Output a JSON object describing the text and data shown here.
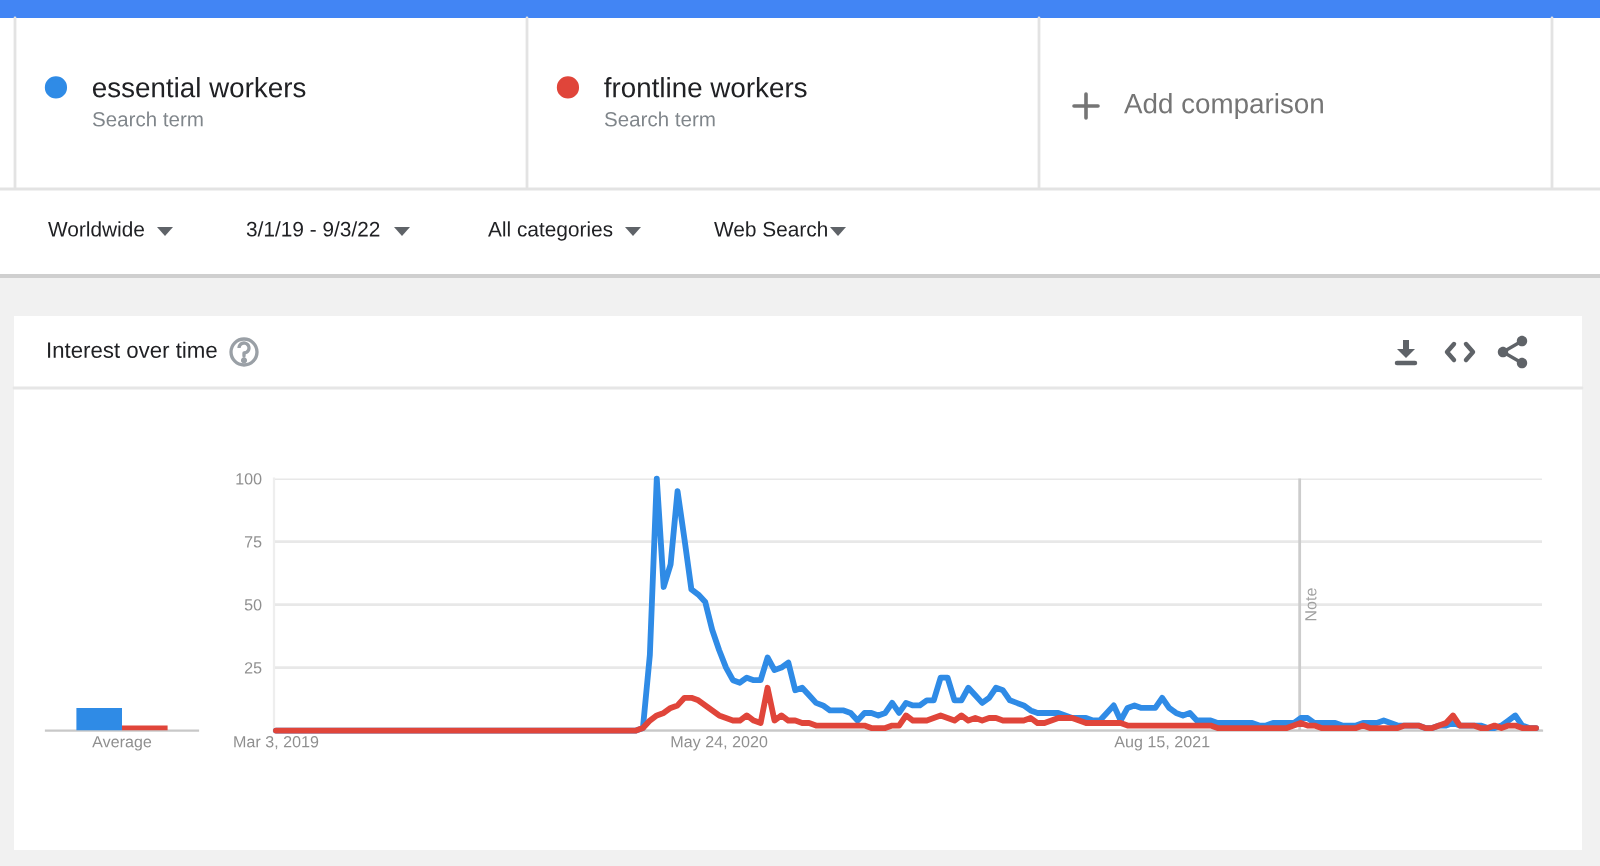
{
  "chart_data": [
    {
      "type": "bar",
      "title": "Interest over time",
      "categories": [
        "Average"
      ],
      "series": [
        {
          "color": "#2f8be6",
          "values": [
            9
          ]
        },
        {
          "color": "#e0453a",
          "values": [
            2
          ]
        }
      ],
      "ylim": [
        0,
        100
      ],
      "tick_labels": "x"
    },
    {
      "type": "line",
      "annotations": [
        "Search term",
        "Search term",
        "Add comparison",
        "Worldwide",
        "3/1/19 - 9/3/22",
        "All categories",
        "Web Search"
      ],
      "x": [
        "2019-03-03",
        "2020-03-01",
        "2020-03-08",
        "2020-03-15",
        "2020-03-22",
        "2020-03-29",
        "2020-04-05",
        "2020-04-12",
        "2020-04-19",
        "2020-04-26",
        "2020-05-03",
        "2020-05-10",
        "2020-05-17",
        "2020-05-24",
        "2020-05-31",
        "2020-06-07",
        "2020-06-14",
        "2020-06-21",
        "2020-06-28",
        "2020-07-05",
        "2020-07-12",
        "2020-07-19",
        "2020-07-26",
        "2020-08-02",
        "2020-08-09",
        "2020-08-16",
        "2020-08-23",
        "2020-08-30",
        "2020-09-06",
        "2020-09-13",
        "2020-09-20",
        "2020-09-27",
        "2020-10-04",
        "2020-10-11",
        "2020-10-18",
        "2020-10-25",
        "2020-11-01",
        "2020-11-08",
        "2020-11-15",
        "2020-11-22",
        "2020-11-29",
        "2020-12-06",
        "2020-12-13",
        "2020-12-20",
        "2020-12-27",
        "2021-01-03",
        "2021-01-10",
        "2021-01-17",
        "2021-01-24",
        "2021-01-31",
        "2021-02-07",
        "2021-02-14",
        "2021-02-21",
        "2021-02-28",
        "2021-03-07",
        "2021-03-14",
        "2021-03-21",
        "2021-03-28",
        "2021-04-04",
        "2021-04-11",
        "2021-04-18",
        "2021-04-25",
        "2021-05-02",
        "2021-05-09",
        "2021-05-16",
        "2021-05-23",
        "2021-05-30",
        "2021-06-06",
        "2021-06-13",
        "2021-06-20",
        "2021-06-27",
        "2021-07-04",
        "2021-07-11",
        "2021-07-18",
        "2021-07-25",
        "2021-08-01",
        "2021-08-08",
        "2021-08-15",
        "2021-08-22",
        "2021-08-29",
        "2021-09-05",
        "2021-09-12",
        "2021-09-19",
        "2021-09-26",
        "2021-10-03",
        "2021-10-10",
        "2021-10-17",
        "2021-10-24",
        "2021-10-31",
        "2021-11-07",
        "2021-11-14",
        "2021-11-21",
        "2021-11-28",
        "2021-12-05",
        "2021-12-12",
        "2021-12-19",
        "2021-12-26",
        "2022-01-02",
        "2022-01-09",
        "2022-01-16",
        "2022-01-23",
        "2022-01-30",
        "2022-02-06",
        "2022-02-13",
        "2022-02-20",
        "2022-02-27",
        "2022-03-06",
        "2022-03-13",
        "2022-03-20",
        "2022-03-27",
        "2022-04-03",
        "2022-04-10",
        "2022-04-17",
        "2022-04-24",
        "2022-05-01",
        "2022-05-08",
        "2022-05-15",
        "2022-05-22",
        "2022-05-29",
        "2022-06-05",
        "2022-06-12",
        "2022-06-19",
        "2022-06-26",
        "2022-07-03",
        "2022-07-10",
        "2022-07-17",
        "2022-07-24",
        "2022-07-31",
        "2022-08-07",
        "2022-08-14",
        "2022-08-21",
        "2022-08-28"
      ],
      "series": [
        {
          "name": "essential workers",
          "color": "#2f8be6",
          "values": [
            0,
            0,
            1,
            30,
            100,
            57,
            66,
            95,
            76,
            56,
            54,
            51,
            40,
            32,
            25,
            20,
            19,
            21,
            20,
            20,
            29,
            24,
            25,
            27,
            16,
            17,
            14,
            11,
            10,
            8,
            8,
            8,
            7,
            4,
            7,
            7,
            6,
            7,
            11,
            7,
            11,
            10,
            10,
            12,
            12,
            21,
            21,
            12,
            12,
            17,
            14,
            11,
            13,
            17,
            16,
            12,
            11,
            10,
            8,
            7,
            7,
            7,
            7,
            6,
            5,
            5,
            5,
            4,
            4,
            7,
            10,
            4,
            9,
            10,
            9,
            9,
            9,
            13,
            9,
            7,
            6,
            7,
            4,
            4,
            4,
            3,
            3,
            3,
            3,
            3,
            3,
            2,
            2,
            3,
            3,
            3,
            3,
            5,
            5,
            3,
            3,
            3,
            3,
            2,
            2,
            2,
            3,
            3,
            3,
            4,
            3,
            2,
            2,
            2,
            2,
            1,
            1,
            2,
            2,
            3,
            2,
            2,
            2,
            2,
            1,
            1,
            2,
            4,
            6,
            2,
            1,
            1
          ]
        },
        {
          "name": "frontline workers",
          "color": "#e0453a",
          "values": [
            0,
            0,
            1,
            4,
            6,
            7,
            9,
            10,
            13,
            13,
            12,
            10,
            8,
            6,
            5,
            4,
            4,
            6,
            4,
            3,
            17,
            4,
            6,
            4,
            4,
            3,
            3,
            2,
            2,
            2,
            2,
            2,
            2,
            2,
            2,
            1,
            1,
            1,
            2,
            2,
            6,
            4,
            4,
            4,
            5,
            6,
            5,
            4,
            6,
            4,
            5,
            4,
            5,
            5,
            4,
            4,
            4,
            4,
            5,
            3,
            3,
            4,
            5,
            5,
            5,
            4,
            3,
            3,
            3,
            3,
            3,
            3,
            2,
            2,
            2,
            2,
            2,
            2,
            2,
            2,
            2,
            2,
            2,
            2,
            2,
            1,
            1,
            1,
            1,
            1,
            1,
            1,
            1,
            1,
            1,
            1,
            2,
            3,
            2,
            2,
            1,
            1,
            1,
            1,
            1,
            1,
            2,
            1,
            1,
            1,
            1,
            1,
            2,
            2,
            2,
            1,
            1,
            2,
            3,
            6,
            2,
            2,
            2,
            1,
            1,
            2,
            1,
            2,
            2,
            1,
            1,
            1
          ]
        }
      ],
      "xlim": [
        "2019-03-01",
        "2022-09-03"
      ],
      "xticks": [
        {
          "value": "2019-03-03",
          "label": "Mar 3, 2019"
        },
        {
          "value": "2020-05-24",
          "label": "May 24, 2020"
        },
        {
          "value": "2021-08-15",
          "label": "Aug 15, 2021"
        }
      ],
      "ylim": [
        0,
        100
      ],
      "yticks": [
        {
          "value": 0,
          "label": null
        },
        25,
        50,
        75,
        100
      ],
      "grid": "y",
      "legend": "top",
      "ref_lines": [
        {
          "axis": "x",
          "value": "2022-01-01",
          "label": "Note",
          "color": "#cccccc"
        }
      ]
    }
  ]
}
